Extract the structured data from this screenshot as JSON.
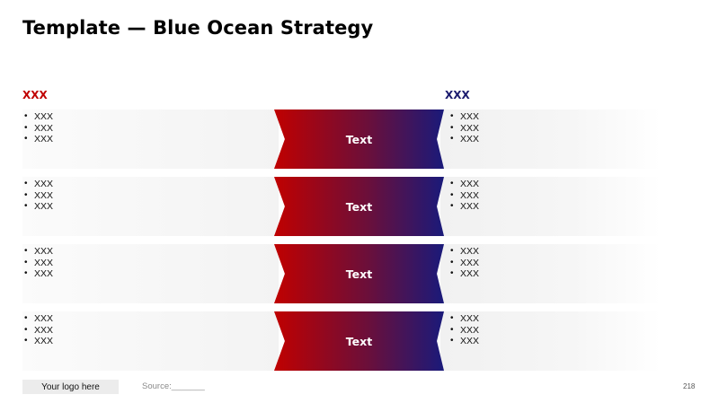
{
  "title": "Template — Blue Ocean Strategy",
  "left_header": "XXX",
  "right_header": "XXX",
  "rows": [
    {
      "left": [
        "XXX",
        "XXX",
        "XXX"
      ],
      "center": "Text",
      "right": [
        "XXX",
        "XXX",
        "XXX"
      ]
    },
    {
      "left": [
        "XXX",
        "XXX",
        "XXX"
      ],
      "center": "Text",
      "right": [
        "XXX",
        "XXX",
        "XXX"
      ]
    },
    {
      "left": [
        "XXX",
        "XXX",
        "XXX"
      ],
      "center": "Text",
      "right": [
        "XXX",
        "XXX",
        "XXX"
      ]
    },
    {
      "left": [
        "XXX",
        "XXX",
        "XXX"
      ],
      "center": "Text",
      "right": [
        "XXX",
        "XXX",
        "XXX"
      ]
    }
  ],
  "footer": {
    "logo": "Your logo here",
    "source": "Source:_______",
    "page_number": "218"
  },
  "colors": {
    "red": "#c00000",
    "navy": "#1a1a7a"
  }
}
